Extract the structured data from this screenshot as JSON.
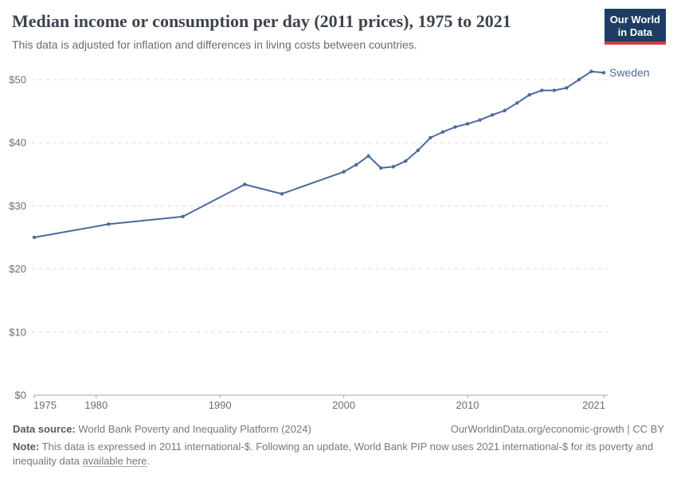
{
  "header": {
    "title": "Median income or consumption per day (2011 prices), 1975 to 2021",
    "subtitle": "This data is adjusted for inflation and differences in living costs between countries.",
    "logo": {
      "line1": "Our World",
      "line2": "in Data"
    }
  },
  "chart_data": {
    "type": "line",
    "title": "Median income or consumption per day (2011 prices), 1975 to 2021",
    "subtitle": "This data is adjusted for inflation and differences in living costs between countries.",
    "xlabel": "",
    "ylabel": "",
    "xlim": [
      1975,
      2021
    ],
    "ylim": [
      0,
      50
    ],
    "xticks": [
      1975,
      1980,
      1990,
      2000,
      2010,
      2021
    ],
    "yticks": [
      0,
      10,
      20,
      30,
      40,
      50
    ],
    "ytick_labels": [
      "$0",
      "$10",
      "$20",
      "$30",
      "$40",
      "$50"
    ],
    "grid": "horizontal dashed",
    "legend_position": "label at end of line",
    "series": [
      {
        "name": "Sweden",
        "color": "#4c6a9c",
        "x": [
          1975,
          1981,
          1987,
          1992,
          1995,
          2000,
          2001,
          2002,
          2003,
          2004,
          2005,
          2006,
          2007,
          2008,
          2009,
          2010,
          2011,
          2012,
          2013,
          2014,
          2015,
          2016,
          2017,
          2018,
          2019,
          2020,
          2021
        ],
        "values": [
          25.0,
          27.1,
          28.3,
          33.4,
          31.9,
          35.4,
          36.5,
          37.9,
          36.0,
          36.2,
          37.1,
          38.8,
          40.8,
          41.7,
          42.5,
          43.0,
          43.6,
          44.4,
          45.1,
          46.3,
          47.6,
          48.3,
          48.3,
          48.7,
          50.0,
          51.3,
          51.1
        ]
      }
    ]
  },
  "footer": {
    "datasource_label": "Data source:",
    "datasource_value": "World Bank Poverty and Inequality Platform (2024)",
    "attribution": "OurWorldinData.org/economic-growth | CC BY",
    "note_label": "Note:",
    "note_text": "This data is expressed in 2011 international-$. Following an update, World Bank PIP now uses 2021 international-$ for its poverty and inequality data",
    "note_link": "available here",
    "note_suffix": "."
  },
  "colors": {
    "accent_line": "#4c6a9c",
    "logo_background": "#1d3d63",
    "logo_red": "#d8383f",
    "title_text": "#3d434d",
    "axis_text": "#6e6e6e",
    "gridline": "#dddddd",
    "axis_line": "#a5a5a5",
    "footer_text": "#787878"
  }
}
